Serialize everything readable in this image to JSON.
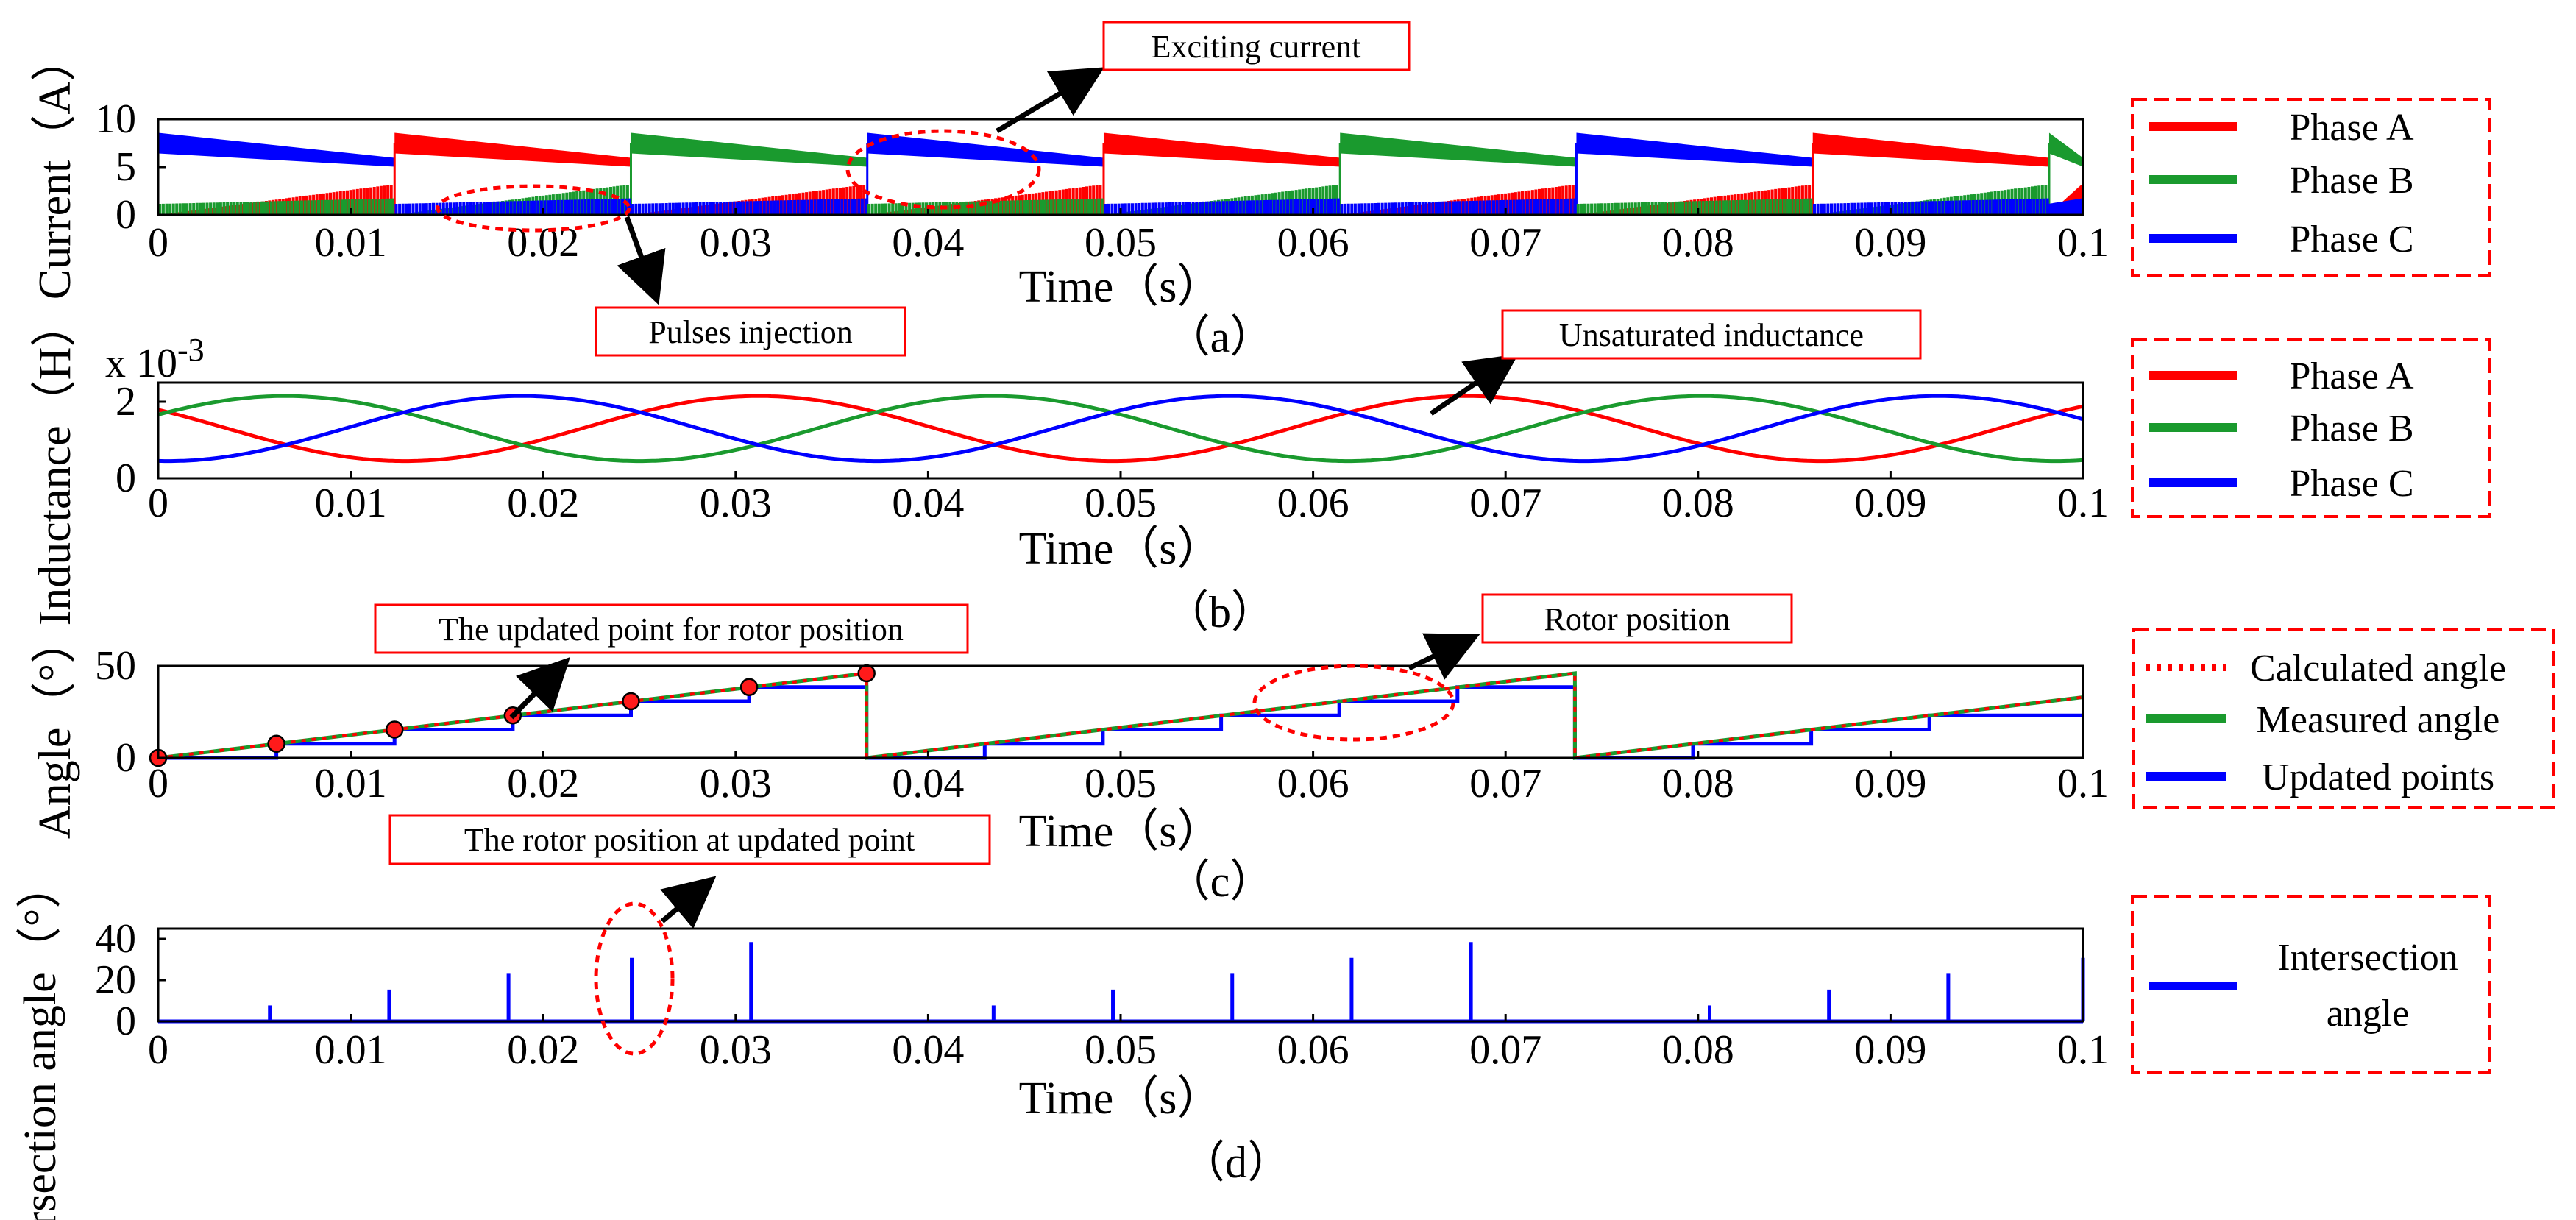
{
  "figure": {
    "colors": {
      "red": "#ff0000",
      "green": "#1a9a2e",
      "blue": "#0000ff",
      "annotation": "#ff0000"
    }
  },
  "chart_data": [
    {
      "id": "a",
      "type": "line",
      "caption": "（a）",
      "xlabel": "Time（s）",
      "ylabel": "Current（A）",
      "xlim": [
        0,
        0.1
      ],
      "ylim": [
        0,
        10
      ],
      "xticks": [
        "0",
        "0.01",
        "0.02",
        "0.03",
        "0.04",
        "0.05",
        "0.06",
        "0.07",
        "0.08",
        "0.09",
        "0.1"
      ],
      "yticks": [
        "0",
        "5",
        "10"
      ],
      "series": [
        {
          "name": "Phase A",
          "color": "#ff0000"
        },
        {
          "name": "Phase B",
          "color": "#1a9a2e"
        },
        {
          "name": "Phase C",
          "color": "#0000ff"
        }
      ],
      "exciting_order": [
        "C",
        "A",
        "B",
        "C",
        "A",
        "B",
        "C",
        "A",
        "B"
      ],
      "segment_duration": 0.01228,
      "exciting_start": 7.5,
      "exciting_end": 5.5,
      "pulse_peak": 3.2,
      "annotations": [
        "Exciting current",
        "Pulses injection"
      ]
    },
    {
      "id": "b",
      "type": "line",
      "caption": "（b）",
      "xlabel": "Time（s）",
      "ylabel": "Inductance（H）",
      "multiplier": "x 10",
      "exponent": "-3",
      "xlim": [
        0,
        0.1
      ],
      "ylim": [
        0,
        2.5
      ],
      "xticks": [
        "0",
        "0.01",
        "0.02",
        "0.03",
        "0.04",
        "0.05",
        "0.06",
        "0.07",
        "0.08",
        "0.09",
        "0.1"
      ],
      "yticks": [
        "0",
        "2"
      ],
      "series": [
        {
          "name": "Phase A",
          "color": "#ff0000",
          "offset": 1.3,
          "amplitude": 0.85,
          "period": 0.0368,
          "peak_at": 0.068
        },
        {
          "name": "Phase B",
          "color": "#1a9a2e",
          "offset": 1.3,
          "amplitude": 0.85,
          "period": 0.0368,
          "peak_at": 0.0066
        },
        {
          "name": "Phase C",
          "color": "#0000ff",
          "offset": 1.3,
          "amplitude": 0.85,
          "period": 0.0368,
          "peak_at": 0.0189
        }
      ],
      "annotations": [
        "Unsaturated inductance"
      ]
    },
    {
      "id": "c",
      "type": "line",
      "caption": "（c）",
      "xlabel": "Time（s）",
      "ylabel": "Angle（°）",
      "xlim": [
        0,
        0.1
      ],
      "ylim": [
        0,
        50
      ],
      "xticks": [
        "0",
        "0.01",
        "0.02",
        "0.03",
        "0.04",
        "0.05",
        "0.06",
        "0.07",
        "0.08",
        "0.09",
        "0.1"
      ],
      "yticks": [
        "0",
        "50"
      ],
      "series": [
        {
          "name": "Calculated angle",
          "color": "#ff0000",
          "style": "dotted"
        },
        {
          "name": "Measured angle",
          "color": "#1a9a2e",
          "style": "solid"
        },
        {
          "name": "Updated points",
          "color": "#0000ff",
          "style": "step"
        }
      ],
      "ramp_period": 0.0368,
      "ramp_max": 46,
      "update_times": [
        0,
        0.00614,
        0.01228,
        0.01842,
        0.02456,
        0.0307,
        0.0368,
        0.04294,
        0.04908,
        0.05522,
        0.06136,
        0.0675,
        0.0736,
        0.07974,
        0.08588,
        0.09202,
        0.1
      ],
      "update_values": [
        0,
        7.7,
        15.4,
        23.1,
        30.8,
        38.5,
        0,
        7.7,
        15.4,
        23.1,
        30.8,
        38.5,
        0,
        7.7,
        15.4,
        23.1,
        23.1
      ],
      "marker_points": [
        [
          0,
          0
        ],
        [
          0.00614,
          7.7
        ],
        [
          0.01228,
          15.4
        ],
        [
          0.01842,
          23.1
        ],
        [
          0.02456,
          30.8
        ],
        [
          0.0307,
          38.5
        ],
        [
          0.0368,
          46
        ]
      ],
      "annotations": [
        "The updated point for rotor position",
        "Rotor position"
      ]
    },
    {
      "id": "d",
      "type": "bar",
      "caption": "（d）",
      "xlabel": "Time（s）",
      "ylabel": "rsection angle（°）",
      "xlim": [
        0,
        0.1
      ],
      "ylim": [
        0,
        45
      ],
      "xticks": [
        "0",
        "0.01",
        "0.02",
        "0.03",
        "0.04",
        "0.05",
        "0.06",
        "0.07",
        "0.08",
        "0.09",
        "0.1"
      ],
      "yticks": [
        "0",
        "20",
        "40"
      ],
      "series": [
        {
          "name": "Intersection angle",
          "color": "#0000ff"
        }
      ],
      "spike_times": [
        0.0058,
        0.012,
        0.0182,
        0.0246,
        0.0308,
        0.0434,
        0.0496,
        0.0558,
        0.062,
        0.0682,
        0.0806,
        0.0868,
        0.093,
        0.1
      ],
      "spike_values": [
        7.7,
        15.4,
        23.1,
        30.8,
        38.5,
        7.7,
        15.4,
        23.1,
        30.8,
        38.5,
        7.7,
        15.4,
        23.1,
        30.8
      ],
      "annotations": [
        "The rotor position at updated point"
      ]
    }
  ]
}
